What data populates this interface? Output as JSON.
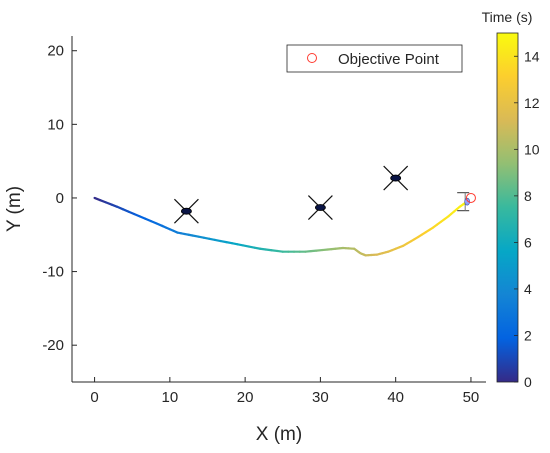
{
  "chart_data": {
    "type": "line",
    "xlabel": "X (m)",
    "ylabel": "Y (m)",
    "xlim": [
      -3,
      52
    ],
    "ylim": [
      -25,
      22
    ],
    "xticks": [
      0,
      10,
      20,
      30,
      40,
      50
    ],
    "yticks": [
      -20,
      -10,
      0,
      10,
      20
    ],
    "colorbar": {
      "title": "Time (s)",
      "range": [
        0,
        15
      ],
      "ticks": [
        0,
        2,
        4,
        6,
        8,
        10,
        12,
        14
      ],
      "colormap": "parula"
    },
    "legend": {
      "position": "top-right",
      "entries": [
        "Objective Point"
      ]
    },
    "series": [
      {
        "name": "trajectory",
        "x": [
          0,
          3,
          6,
          9,
          11,
          13,
          16,
          19,
          22,
          25,
          28,
          31,
          33,
          34.5,
          35.3,
          36,
          37.5,
          39,
          41,
          43,
          45,
          47,
          48.5,
          49.5
        ],
        "y": [
          0,
          -1.2,
          -2.5,
          -3.8,
          -4.7,
          -5.1,
          -5.7,
          -6.3,
          -6.9,
          -7.3,
          -7.3,
          -7.0,
          -6.8,
          -6.9,
          -7.5,
          -7.8,
          -7.7,
          -7.3,
          -6.5,
          -5.3,
          -4.0,
          -2.5,
          -1.2,
          -0.5
        ],
        "t": [
          0,
          0.9,
          1.8,
          2.7,
          3.3,
          3.9,
          4.8,
          5.7,
          6.6,
          7.5,
          8.4,
          9.3,
          9.9,
          10.3,
          10.6,
          10.8,
          11.3,
          11.7,
          12.3,
          12.9,
          13.5,
          14.1,
          14.5,
          14.8
        ]
      }
    ],
    "obstacles": [
      {
        "x": 12.2,
        "y": -1.8
      },
      {
        "x": 30.0,
        "y": -1.3
      },
      {
        "x": 40.0,
        "y": 2.7
      }
    ],
    "objective_point": {
      "x": 50.0,
      "y": 0.0,
      "color": "#ff3b30"
    }
  }
}
